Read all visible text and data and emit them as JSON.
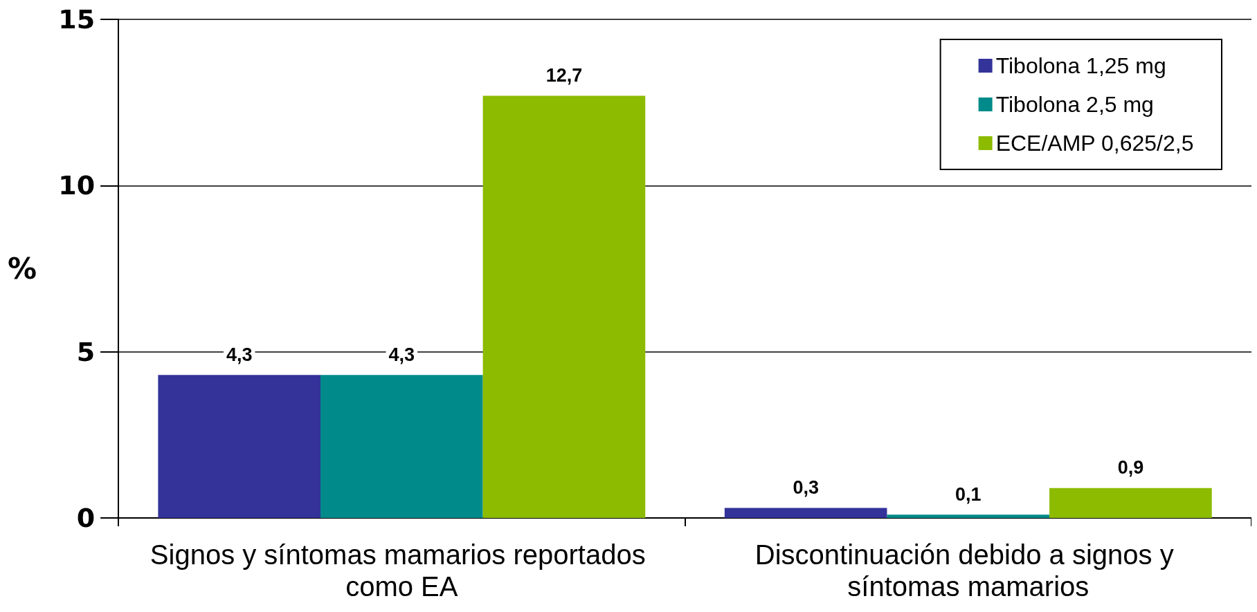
{
  "chart_data": {
    "type": "bar",
    "ylabel": "%",
    "categories": [
      "Signos y síntomas mamarios reportados como EA",
      "Discontinuación debido a signos y síntomas mamarios"
    ],
    "series": [
      {
        "name": "Tibolona 1,25 mg",
        "color": "#33339a",
        "values": [
          4.3,
          0.3
        ],
        "value_labels": [
          "4,3",
          "0,3"
        ]
      },
      {
        "name": "Tibolona 2,5 mg",
        "color": "#008a8a",
        "values": [
          4.3,
          0.1
        ],
        "value_labels": [
          "4,3",
          "0,1"
        ]
      },
      {
        "name": "ECE/AMP 0,625/2,5",
        "color": "#8cbb00",
        "values": [
          12.7,
          0.9
        ],
        "value_labels": [
          "12,7",
          "0,9"
        ]
      }
    ],
    "ylim": [
      0,
      15
    ],
    "yticks": [
      0,
      5,
      10,
      15
    ],
    "grid": "y",
    "legend": "top right"
  }
}
